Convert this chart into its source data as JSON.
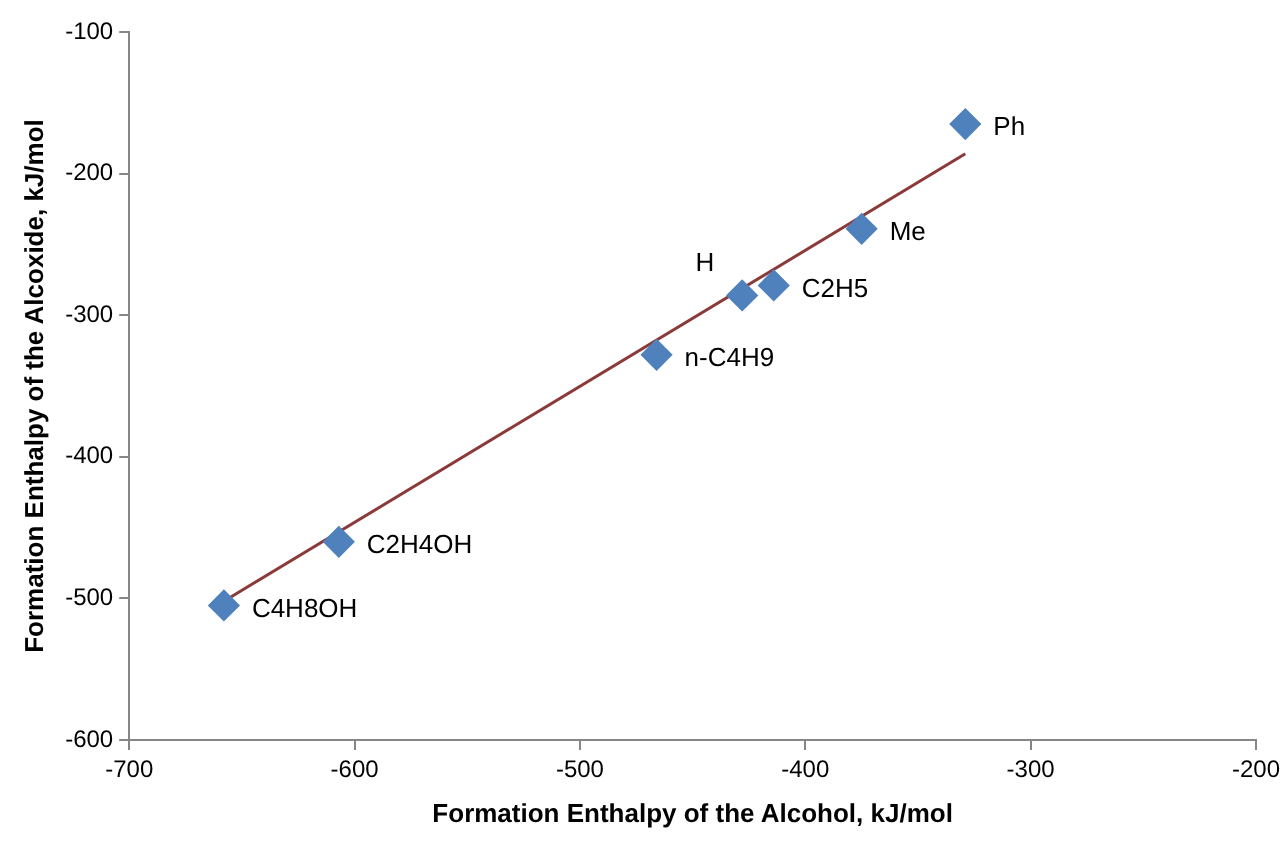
{
  "chart_data": {
    "type": "scatter",
    "xlabel": "Formation Enthalpy of the Alcohol, kJ/mol",
    "ylabel": "Formation Enthalpy of the Alcoxide, kJ/mol",
    "xlim": [
      -700,
      -200
    ],
    "xticks": [
      -700,
      -600,
      -500,
      -400,
      -300,
      -200
    ],
    "ylim": [
      -600,
      -100
    ],
    "yticks": [
      -600,
      -500,
      -400,
      -300,
      -200,
      -100
    ],
    "grid": false,
    "legend": false,
    "marker": "diamond",
    "series": [
      {
        "color": "#4f81bd",
        "x": [
          -329,
          -375,
          -414,
          -428,
          -466,
          -607,
          -658
        ],
        "values": [
          -165,
          -239,
          -279,
          -286,
          -328,
          -460,
          -505
        ]
      },
      {
        "type": "line",
        "color": "#8b3a3a",
        "marker": "none",
        "line_style": "solid",
        "x": [
          -658,
          -329
        ],
        "values": [
          -502,
          -186
        ]
      }
    ],
    "annotations": [
      {
        "text": "Ph",
        "x": -329,
        "y": -165
      },
      {
        "text": "Me",
        "x": -375,
        "y": -239
      },
      {
        "text": "C2H5",
        "x": -414,
        "y": -279
      },
      {
        "text": "H",
        "x": -428,
        "y": -286
      },
      {
        "text": "n-C4H9",
        "x": -466,
        "y": -328
      },
      {
        "text": "C2H4OH",
        "x": -607,
        "y": -460
      },
      {
        "text": "C4H8OH",
        "x": -658,
        "y": -505
      }
    ]
  }
}
